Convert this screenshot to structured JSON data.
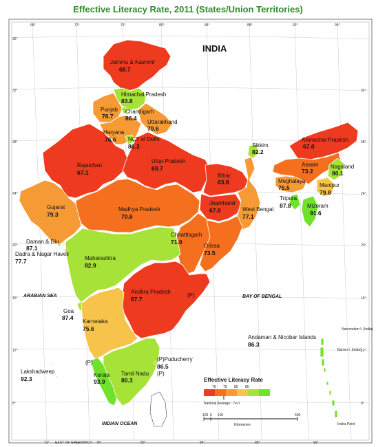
{
  "title": "Effective Literacy Rate, 2011 (States/Union Territories)",
  "map_title": "INDIA",
  "colors": {
    "c1": "#ee3a1e",
    "c2": "#f4701f",
    "c3": "#f59a34",
    "c4": "#f7c34a",
    "c5": "#a6e238",
    "c6": "#6fe22a"
  },
  "regions": [
    {
      "id": "jk",
      "name": "Jammu & Kashmir",
      "value": "68.7"
    },
    {
      "id": "hp",
      "name": "Himachal Pradesh",
      "value": "83.8"
    },
    {
      "id": "pb",
      "name": "Punjab",
      "value": "76.7"
    },
    {
      "id": "ch",
      "name": "Chandigarh",
      "value": "86.4"
    },
    {
      "id": "uk",
      "name": "Uttarakhand",
      "value": "79.6"
    },
    {
      "id": "hr",
      "name": "Haryana",
      "value": "76.6"
    },
    {
      "id": "dl",
      "name": "NCT of Delhi",
      "value": "86.3"
    },
    {
      "id": "rj",
      "name": "Rajasthan",
      "value": "67.1"
    },
    {
      "id": "up",
      "name": "Uttar Pradesh",
      "value": "69.7"
    },
    {
      "id": "sk",
      "name": "Sikkim",
      "value": "82.2"
    },
    {
      "id": "ar",
      "name": "Arunachal Pradesh",
      "value": "67.0"
    },
    {
      "id": "as",
      "name": "Assam",
      "value": "73.2"
    },
    {
      "id": "nl",
      "name": "Nagaland",
      "value": "80.1"
    },
    {
      "id": "br",
      "name": "Bihar",
      "value": "63.8"
    },
    {
      "id": "ml",
      "name": "Meghalaya",
      "value": "75.5"
    },
    {
      "id": "mn",
      "name": "Manipur",
      "value": "79.8"
    },
    {
      "id": "jh",
      "name": "Jharkhand",
      "value": "67.6"
    },
    {
      "id": "wb",
      "name": "West Bengal",
      "value": "77.1"
    },
    {
      "id": "tr",
      "name": "Tripura",
      "value": "87.8"
    },
    {
      "id": "mz",
      "name": "Mizoram",
      "value": "91.6"
    },
    {
      "id": "gj",
      "name": "Gujarat",
      "value": "79.3"
    },
    {
      "id": "mp",
      "name": "Madhya Pradesh",
      "value": "70.6"
    },
    {
      "id": "cg",
      "name": "Chhattisgarh",
      "value": "71.0"
    },
    {
      "id": "or",
      "name": "Orissa",
      "value": "73.5"
    },
    {
      "id": "dd",
      "name": "Daman & Diu",
      "value": "87.1"
    },
    {
      "id": "dn",
      "name": "Dadra & Nagar Haveli",
      "value": "77.7"
    },
    {
      "id": "mh",
      "name": "Maharashtra",
      "value": "82.9"
    },
    {
      "id": "ap",
      "name": "Andhra Pradesh",
      "value": "67.7"
    },
    {
      "id": "ga",
      "name": "Goa",
      "value": "87.4"
    },
    {
      "id": "ka",
      "name": "Karnataka",
      "value": "75.6"
    },
    {
      "id": "an",
      "name": "Andaman & Nicobar Islands",
      "value": "86.3"
    },
    {
      "id": "ld",
      "name": "Lakshadweep",
      "value": "92.3"
    },
    {
      "id": "kl",
      "name": "Kerala",
      "value": "93.9"
    },
    {
      "id": "tn",
      "name": "Tamil Nadu",
      "value": "80.3"
    },
    {
      "id": "py",
      "name": "Puducherry",
      "value": "86.5"
    }
  ],
  "markers": {
    "p": "(P)",
    "pudu": "(P)Puducherry"
  },
  "seas": {
    "arabian": "ARABIAN SEA",
    "bengal": "BAY OF BENGAL",
    "indian": "INDIAN OCEAN"
  },
  "islands": {
    "narcondam": "Narcondam I. (India)",
    "barren": "Barren I. (India)",
    "indira": "Indira Point"
  },
  "legend": {
    "title": "Effective Literacy Rate",
    "ticks": [
      "70",
      "75",
      "80",
      "85"
    ],
    "national_average": "National Average : 74.0"
  },
  "scale": {
    "labels": [
      "100",
      "0",
      "100",
      "500"
    ],
    "unit": "Kilometres"
  },
  "greenwich": "EAST OF GREENWICH",
  "lon_labels": [
    "72°",
    "76°",
    "80°",
    "84°",
    "88°",
    "92°"
  ],
  "lon_top": [
    "68°",
    "72°",
    "76°",
    "80°",
    "84°",
    "88°",
    "92°",
    "96°"
  ],
  "lat_labels": [
    "36°",
    "32°",
    "28°",
    "24°",
    "20°",
    "16°",
    "12°",
    "8°"
  ]
}
